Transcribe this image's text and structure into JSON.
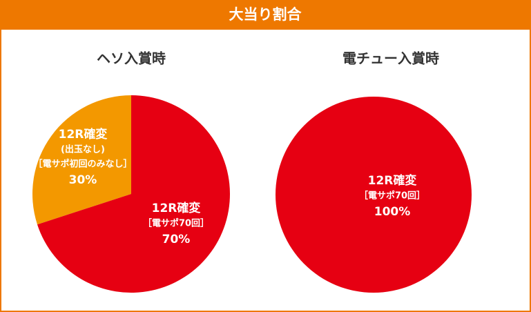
{
  "title": "大当り割合",
  "chart_data": [
    {
      "type": "pie",
      "title": "ヘソ入賞時",
      "categories": [
        "12R確変",
        "12R確変"
      ],
      "category_details": [
        [
          "(出玉なし)",
          "［電サポ初回のみなし］"
        ],
        [
          "［電サポ70回］"
        ]
      ],
      "values": [
        30,
        70
      ],
      "value_labels": [
        "30%",
        "70%"
      ],
      "colors": [
        "#f39800",
        "#e60012"
      ],
      "direction": "counterclockwise"
    },
    {
      "type": "pie",
      "title": "電チュー入賞時",
      "categories": [
        "12R確変"
      ],
      "category_details": [
        [
          "［電サポ70回］"
        ]
      ],
      "values": [
        100
      ],
      "value_labels": [
        "100%"
      ],
      "colors": [
        "#e60012"
      ],
      "direction": "counterclockwise"
    }
  ]
}
